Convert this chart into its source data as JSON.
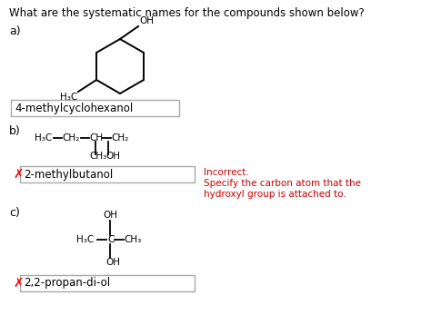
{
  "title": "What are the systematic names for the compounds shown below?",
  "title_fontsize": 8.5,
  "bg_color": "#ffffff",
  "section_a_label": "a)",
  "section_b_label": "b)",
  "section_c_label": "c)",
  "answer_a": "4-methylcyclohexanol",
  "answer_b": "2-methylbutanol",
  "answer_c": "2,2-propan-di-ol",
  "incorrect_line1": "Incorrect.",
  "incorrect_line2": "Specify the carbon atom that the",
  "incorrect_line3": "hydroxyl group is attached to.",
  "incorrect_color": "#cc0000",
  "answer_fontsize": 8.5,
  "box_edge_color": "#aaaaaa",
  "label_fontsize": 9,
  "chem_fontsize": 7.5
}
